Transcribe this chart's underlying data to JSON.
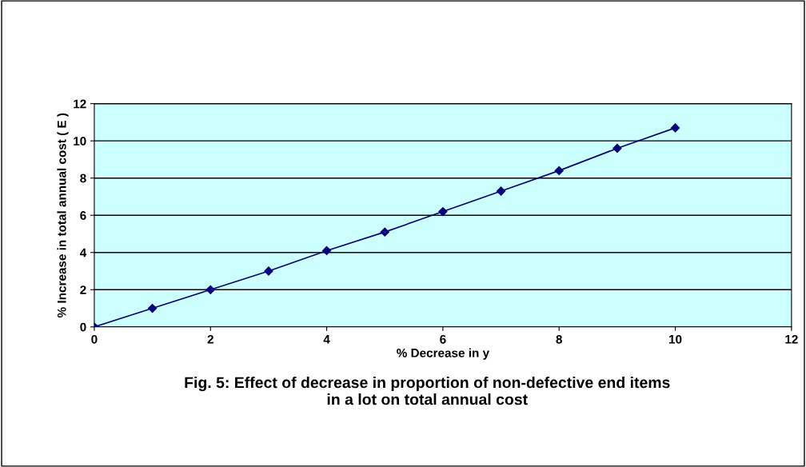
{
  "chart_data": {
    "type": "line",
    "xlabel": "% Decrease in y",
    "ylabel": "% Increase in total annual cost ( E )",
    "annotations": [
      "Fig. 5: Effect of decrease in proportion of non-defective end items\nin a lot on total annual cost"
    ],
    "x": [
      0,
      1,
      2,
      3,
      4,
      5,
      6,
      7,
      8,
      9,
      10
    ],
    "series": [
      {
        "color": "#000080",
        "values": [
          0,
          1.0,
          2.0,
          3.0,
          4.1,
          5.1,
          6.2,
          7.3,
          8.4,
          9.6,
          10.7
        ]
      }
    ],
    "xlim": [
      0,
      12
    ],
    "xticks": [
      0,
      2,
      4,
      6,
      8,
      10,
      12
    ],
    "ylim": [
      0,
      12
    ],
    "yticks": [
      0,
      2,
      4,
      6,
      8,
      10,
      12
    ],
    "grid": "y",
    "marker": "diamond",
    "line_style": "solid"
  }
}
